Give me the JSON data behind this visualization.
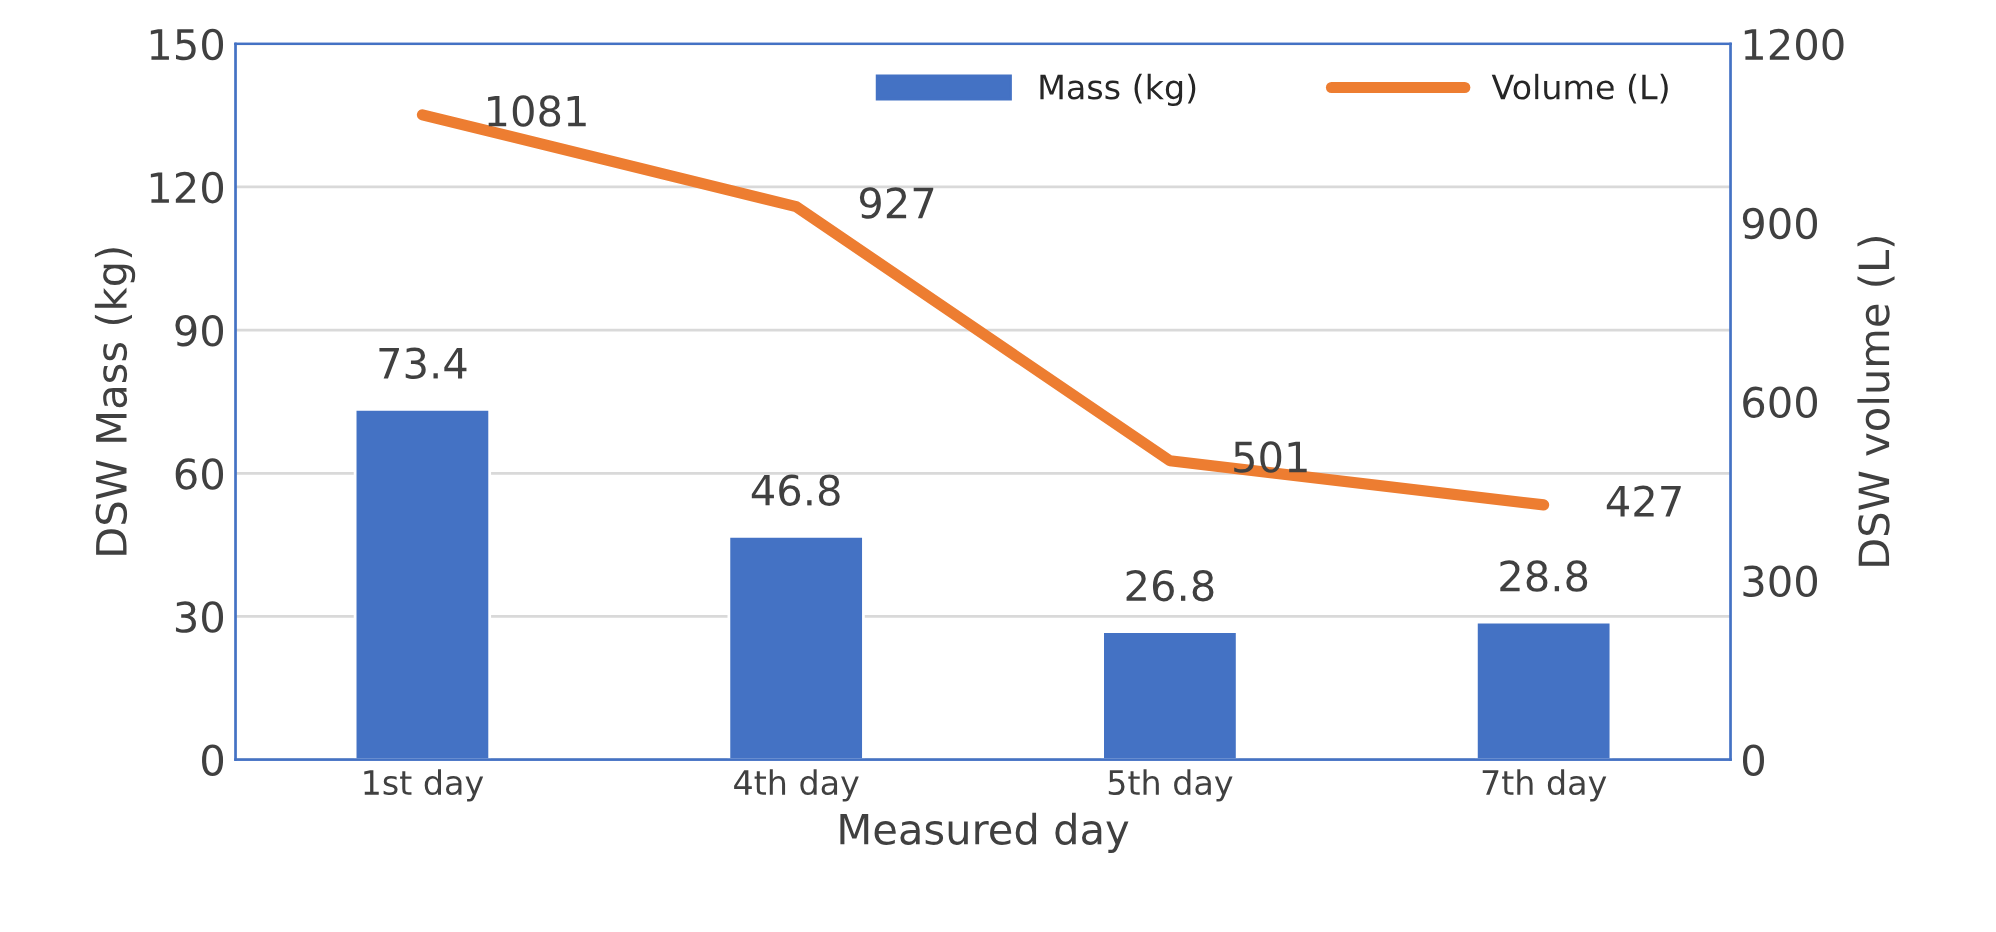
{
  "chart_data": {
    "type": "bar",
    "xlabel": "Measured day",
    "ylabel": "DSW Mass (kg)",
    "y2label": "DSW volume (L)",
    "categories": [
      "1st day",
      "4th day",
      "5th day",
      "7th day"
    ],
    "series": [
      {
        "name": "Mass (kg)",
        "color": "#4472c4",
        "values": [
          73.4,
          46.8,
          26.8,
          28.8
        ]
      },
      {
        "name": "Volume (L)",
        "type": "line",
        "axis": "y2",
        "color": "#ed7d31",
        "values": [
          1081,
          927,
          501,
          427
        ]
      }
    ],
    "ylim": [
      0,
      150
    ],
    "yticks": [
      0,
      30,
      60,
      90,
      120,
      150
    ],
    "y2lim": [
      0,
      1200
    ],
    "y2ticks": [
      0,
      300,
      600,
      900,
      1200
    ],
    "grid": "y",
    "legend": "top right",
    "data_labels": true,
    "marker": "none"
  }
}
